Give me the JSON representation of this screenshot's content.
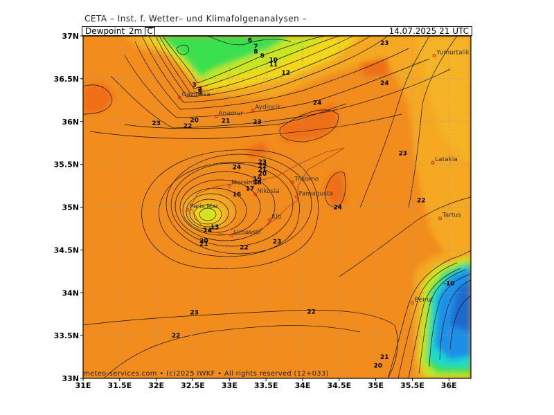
{
  "header": {
    "org": "CETA – Inst. f. Wetter– und Klimafolgenanalysen –",
    "title": "Dewpoint_2m",
    "unit": "C",
    "datetime": "14.07.2025 21 UTC"
  },
  "footer": "meteo-services.com • (c)2025 IWKF • All rights reserved (12+033)",
  "map": {
    "lon_range": [
      31,
      36.3
    ],
    "lat_range": [
      33,
      37
    ],
    "lon_ticks": [
      "31E",
      "31.5E",
      "32E",
      "32.5E",
      "33E",
      "33.5E",
      "34E",
      "34.5E",
      "35E",
      "35.5E",
      "36E"
    ],
    "lat_ticks": [
      "33N",
      "33.5N",
      "34N",
      "34.5N",
      "35N",
      "35.5N",
      "36N",
      "36.5N",
      "37N"
    ],
    "colors": {
      "base": "#f28c1c",
      "dark_orange": "#f06e16",
      "light_orange": "#f5a821",
      "yellow": "#f2d81a",
      "yellow_green": "#c8e624",
      "green": "#3ae050",
      "cyan": "#1ad8d0",
      "blue": "#1a90e8",
      "dark_blue": "#1a6ad0"
    },
    "places": [
      {
        "name": "Yumurtalik",
        "lon": 35.8,
        "lat": 36.77
      },
      {
        "name": "Gazipasa",
        "lon": 32.32,
        "lat": 36.28
      },
      {
        "name": "Anamur",
        "lon": 32.82,
        "lat": 36.06
      },
      {
        "name": "Aydincik",
        "lon": 33.32,
        "lat": 36.13
      },
      {
        "name": "Latakia",
        "lon": 35.78,
        "lat": 35.52
      },
      {
        "name": "Trikomo",
        "lon": 33.86,
        "lat": 35.29
      },
      {
        "name": "Mersinlik",
        "lon": 33.0,
        "lat": 35.25
      },
      {
        "name": "Nikosia",
        "lon": 33.35,
        "lat": 35.15
      },
      {
        "name": "Famagusta",
        "lon": 33.92,
        "lat": 35.12
      },
      {
        "name": "Paris Mar",
        "lon": 32.43,
        "lat": 34.97
      },
      {
        "name": "Kiti",
        "lon": 33.55,
        "lat": 34.85
      },
      {
        "name": "Limassol",
        "lon": 33.03,
        "lat": 34.67
      },
      {
        "name": "Tartus",
        "lon": 35.88,
        "lat": 34.87
      },
      {
        "name": "Beirut",
        "lon": 35.5,
        "lat": 33.88
      }
    ],
    "contour_labels": [
      {
        "text": "23",
        "lon": 35.12,
        "lat": 36.92
      },
      {
        "text": "24",
        "lon": 35.12,
        "lat": 36.45
      },
      {
        "text": "6",
        "lon": 33.28,
        "lat": 36.95
      },
      {
        "text": "7",
        "lon": 33.36,
        "lat": 36.88
      },
      {
        "text": "8",
        "lon": 33.36,
        "lat": 36.82
      },
      {
        "text": "9",
        "lon": 33.45,
        "lat": 36.77
      },
      {
        "text": "10",
        "lon": 33.6,
        "lat": 36.72
      },
      {
        "text": "11",
        "lon": 33.6,
        "lat": 36.67
      },
      {
        "text": "12",
        "lon": 33.77,
        "lat": 36.57
      },
      {
        "text": "3",
        "lon": 32.52,
        "lat": 36.43
      },
      {
        "text": "4",
        "lon": 32.6,
        "lat": 36.38
      },
      {
        "text": "5",
        "lon": 32.6,
        "lat": 36.34
      },
      {
        "text": "24",
        "lon": 34.2,
        "lat": 36.22
      },
      {
        "text": "23",
        "lon": 32.0,
        "lat": 35.98
      },
      {
        "text": "22",
        "lon": 32.43,
        "lat": 35.95
      },
      {
        "text": "20",
        "lon": 32.52,
        "lat": 36.02
      },
      {
        "text": "21",
        "lon": 32.95,
        "lat": 36.01
      },
      {
        "text": "23",
        "lon": 33.38,
        "lat": 36.0
      },
      {
        "text": "23",
        "lon": 35.37,
        "lat": 35.63
      },
      {
        "text": "24",
        "lon": 33.1,
        "lat": 35.47
      },
      {
        "text": "23",
        "lon": 33.45,
        "lat": 35.53
      },
      {
        "text": "22",
        "lon": 33.45,
        "lat": 35.48
      },
      {
        "text": "21",
        "lon": 33.45,
        "lat": 35.44
      },
      {
        "text": "20",
        "lon": 33.45,
        "lat": 35.39
      },
      {
        "text": "19",
        "lon": 33.38,
        "lat": 35.33
      },
      {
        "text": "18",
        "lon": 33.38,
        "lat": 35.29
      },
      {
        "text": "17",
        "lon": 33.28,
        "lat": 35.22
      },
      {
        "text": "16",
        "lon": 33.1,
        "lat": 35.15
      },
      {
        "text": "24",
        "lon": 34.48,
        "lat": 35.0
      },
      {
        "text": "22",
        "lon": 35.62,
        "lat": 35.08
      },
      {
        "text": "13",
        "lon": 32.8,
        "lat": 34.77
      },
      {
        "text": "14",
        "lon": 32.7,
        "lat": 34.73
      },
      {
        "text": "20",
        "lon": 32.65,
        "lat": 34.61
      },
      {
        "text": "21",
        "lon": 32.65,
        "lat": 34.57
      },
      {
        "text": "22",
        "lon": 33.2,
        "lat": 34.53
      },
      {
        "text": "23",
        "lon": 33.65,
        "lat": 34.6
      },
      {
        "text": "-10",
        "lon": 36.0,
        "lat": 34.11
      },
      {
        "text": "23",
        "lon": 32.52,
        "lat": 33.77
      },
      {
        "text": "22",
        "lon": 34.12,
        "lat": 33.78
      },
      {
        "text": "22",
        "lon": 32.27,
        "lat": 33.5
      },
      {
        "text": "21",
        "lon": 35.12,
        "lat": 33.25
      },
      {
        "text": "20",
        "lon": 35.03,
        "lat": 33.15
      }
    ]
  }
}
